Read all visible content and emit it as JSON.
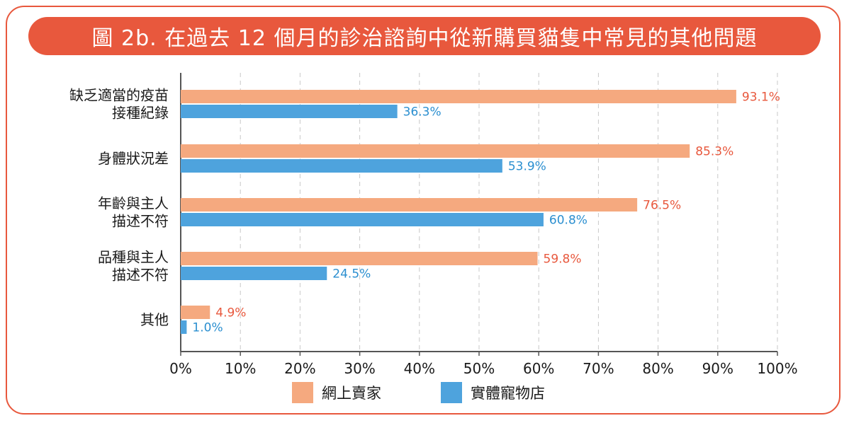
{
  "title": "圖 2b. 在過去 12 個月的診治諮詢中從新購買貓隻中常見的其他問題",
  "colors": {
    "accent": "#e8583d",
    "online": "#f5a97f",
    "store": "#4ea3dd",
    "online_label": "#e8583d",
    "store_label": "#2b8fd0"
  },
  "chart_data": {
    "type": "bar",
    "orientation": "horizontal",
    "categories": [
      [
        "缺乏適當的疫苗",
        "接種紀錄"
      ],
      [
        "身體狀況差"
      ],
      [
        "年齡與主人",
        "描述不符"
      ],
      [
        "品種與主人",
        "描述不符"
      ],
      [
        "其他"
      ]
    ],
    "series": [
      {
        "name": "網上賣家",
        "values": [
          93.1,
          85.3,
          76.5,
          59.8,
          4.9
        ],
        "labels": [
          "93.1%",
          "85.3%",
          "76.5%",
          "59.8%",
          "4.9%"
        ]
      },
      {
        "name": "實體寵物店",
        "values": [
          36.3,
          53.9,
          60.8,
          24.5,
          1.0
        ],
        "labels": [
          "36.3%",
          "53.9%",
          "60.8%",
          "24.5%",
          "1.0%"
        ]
      }
    ],
    "xlim": [
      0,
      100
    ],
    "xticks": [
      "0%",
      "10%",
      "20%",
      "30%",
      "40%",
      "50%",
      "60%",
      "70%",
      "80%",
      "90%",
      "100%"
    ],
    "grid": "vertical dashed",
    "legend": "bottom"
  }
}
